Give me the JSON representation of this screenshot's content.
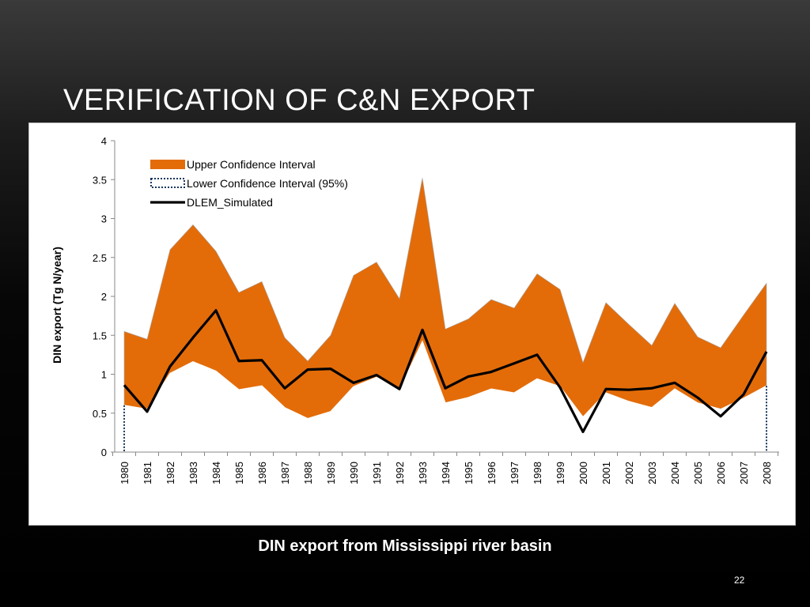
{
  "slide": {
    "title": "VERIFICATION OF C&N EXPORT",
    "caption": "DIN export from Mississippi river basin",
    "page_number": "22"
  },
  "colors": {
    "band_fill": "#E36C09",
    "lower_line": "#17375E",
    "sim_line": "#000000",
    "axis": "#888888"
  },
  "chart_data": {
    "type": "area",
    "title": "",
    "xlabel": "",
    "ylabel": "DIN export (Tg N/year)",
    "ylim": [
      0,
      4
    ],
    "yticks": [
      0,
      0.5,
      1,
      1.5,
      2,
      2.5,
      3,
      3.5,
      4
    ],
    "ytick_labels": [
      "0",
      "0.5",
      "1",
      "1.5",
      "2",
      "2.5",
      "3",
      "3.5",
      "4"
    ],
    "categories": [
      "1980",
      "1981",
      "1982",
      "1983",
      "1984",
      "1985",
      "1986",
      "1987",
      "1988",
      "1989",
      "1990",
      "1991",
      "1992",
      "1993",
      "1994",
      "1995",
      "1996",
      "1997",
      "1998",
      "1999",
      "2000",
      "2001",
      "2002",
      "2003",
      "2004",
      "2005",
      "2006",
      "2007",
      "2008"
    ],
    "legend_position": "top-left",
    "series": [
      {
        "name": "Upper Confidence Interval",
        "style": "area",
        "values": [
          1.55,
          1.45,
          2.6,
          2.92,
          2.58,
          2.05,
          2.19,
          1.47,
          1.17,
          1.5,
          2.27,
          2.44,
          1.97,
          3.52,
          1.58,
          1.71,
          1.96,
          1.85,
          2.29,
          2.09,
          1.15,
          1.92,
          1.64,
          1.37,
          1.91,
          1.48,
          1.34,
          1.76,
          2.17
        ]
      },
      {
        "name": "Lower Confidence Interval (95%)",
        "style": "dotted",
        "values": [
          0.6,
          0.55,
          1.01,
          1.16,
          1.04,
          0.8,
          0.85,
          0.57,
          0.43,
          0.52,
          0.84,
          0.96,
          0.8,
          1.42,
          0.63,
          0.7,
          0.81,
          0.76,
          0.94,
          0.84,
          0.45,
          0.76,
          0.65,
          0.57,
          0.81,
          0.63,
          0.55,
          0.69,
          0.85
        ]
      },
      {
        "name": "DLEM_Simulated",
        "style": "line",
        "values": [
          0.86,
          0.52,
          1.1,
          1.47,
          1.82,
          1.17,
          1.18,
          0.82,
          1.06,
          1.07,
          0.89,
          0.99,
          0.81,
          1.57,
          0.82,
          0.97,
          1.03,
          1.14,
          1.25,
          0.83,
          0.26,
          0.81,
          0.8,
          0.82,
          0.89,
          0.7,
          0.46,
          0.74,
          1.29
        ]
      }
    ]
  }
}
